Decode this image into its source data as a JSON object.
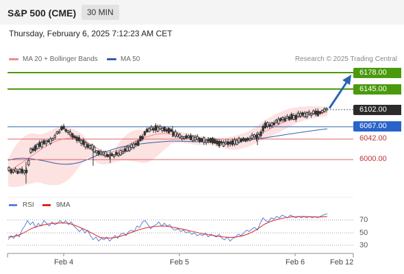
{
  "header": {
    "title": "S&P 500 (CME)",
    "timeframe": "30 MIN",
    "datetime": "Thursday, February 6, 2025 7:12:23 AM CET"
  },
  "legend": {
    "items": [
      {
        "label": "MA 20 + Bollinger Bands",
        "color": "#f08a8a"
      },
      {
        "label": "MA 50",
        "color": "#2f5da8"
      }
    ],
    "credit": "Research © 2025 Trading Central"
  },
  "price_levels": [
    {
      "value": "6178.00",
      "style": "green"
    },
    {
      "value": "6145.00",
      "style": "green"
    },
    {
      "value": "6102.00",
      "style": "dark"
    },
    {
      "value": "6067.00",
      "style": "blue"
    },
    {
      "value": "6042.00",
      "style": "plain"
    },
    {
      "value": "6000.00",
      "style": "plain"
    }
  ],
  "rsi": {
    "legend": [
      {
        "label": "RSI",
        "color": "#5b7fd6"
      },
      {
        "label": "9MA",
        "color": "#e02020"
      }
    ],
    "levels": [
      "70",
      "50",
      "30"
    ]
  },
  "x_axis": {
    "labels": [
      "Feb 4",
      "Feb 5",
      "Feb 6",
      "Feb 12"
    ]
  },
  "colors": {
    "candle": "#333333",
    "bollinger_fill": "#fde0e0",
    "resistance": "#4a9a0c",
    "support": "#e06060",
    "ma50": "#2f5da8",
    "arrow": "#2a63b8"
  }
}
